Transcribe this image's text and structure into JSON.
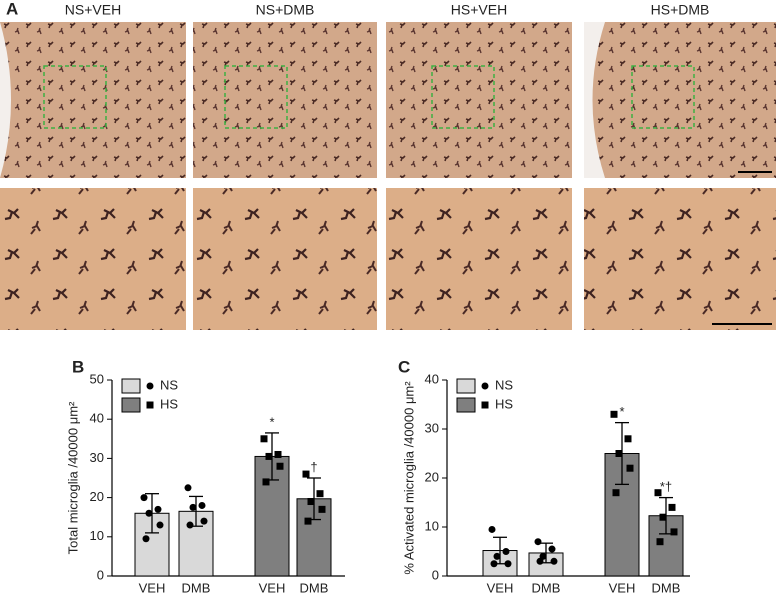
{
  "panel_a": {
    "label": "A",
    "columns": [
      "NS+VEH",
      "NS+DMB",
      "HS+VEH",
      "HS+DMB"
    ]
  },
  "chart_data": [
    {
      "type": "bar",
      "label": "B",
      "y_label": "Total microglia /40000 μm²",
      "categories": [
        "VEH",
        "DMB",
        "VEH",
        "DMB"
      ],
      "ylim": [
        0,
        50
      ],
      "yticks": [
        0,
        10,
        20,
        30,
        40,
        50
      ],
      "legend": "upper left",
      "series": [
        {
          "name": "NS",
          "color": "#d9d9d9",
          "marker": "circle",
          "values": [
            16,
            16.5,
            null,
            null
          ],
          "errors": [
            5,
            3.8,
            null,
            null
          ],
          "points": [
            [
              20,
              17,
              16,
              13,
              9.5
            ],
            [
              22.5,
              18,
              17.5,
              14,
              13
            ],
            null,
            null
          ],
          "annotations": [
            null,
            null,
            null,
            null
          ]
        },
        {
          "name": "HS",
          "color": "#7f7f7f",
          "marker": "square",
          "values": [
            null,
            null,
            30.5,
            19.7
          ],
          "errors": [
            null,
            null,
            6,
            5.3
          ],
          "points": [
            null,
            null,
            [
              35,
              31,
              30.5,
              28,
              24
            ],
            [
              26,
              21,
              19,
              17,
              14
            ]
          ],
          "annotations": [
            null,
            null,
            "*",
            "†"
          ]
        }
      ]
    },
    {
      "type": "bar",
      "label": "C",
      "y_label": "% Activated microglia /40000 μm²",
      "categories": [
        "VEH",
        "DMB",
        "VEH",
        "DMB"
      ],
      "ylim": [
        0,
        40
      ],
      "yticks": [
        0,
        10,
        20,
        30,
        40
      ],
      "legend": "upper left",
      "series": [
        {
          "name": "NS",
          "color": "#d9d9d9",
          "marker": "circle",
          "values": [
            5.2,
            4.7,
            null,
            null
          ],
          "errors": [
            2.7,
            2,
            null,
            null
          ],
          "points": [
            [
              9.5,
              5,
              4,
              2.5,
              2.5
            ],
            [
              7,
              5.5,
              4,
              3,
              3
            ],
            null,
            null
          ],
          "annotations": [
            null,
            null,
            null,
            null
          ]
        },
        {
          "name": "HS",
          "color": "#7f7f7f",
          "marker": "square",
          "values": [
            null,
            null,
            25,
            12.3
          ],
          "errors": [
            null,
            null,
            6.3,
            3.7
          ],
          "points": [
            null,
            null,
            [
              33,
              28,
              25,
              22,
              17
            ],
            [
              17,
              14,
              12,
              9,
              7
            ]
          ],
          "annotations": [
            null,
            null,
            "*",
            "*†"
          ]
        }
      ]
    }
  ]
}
